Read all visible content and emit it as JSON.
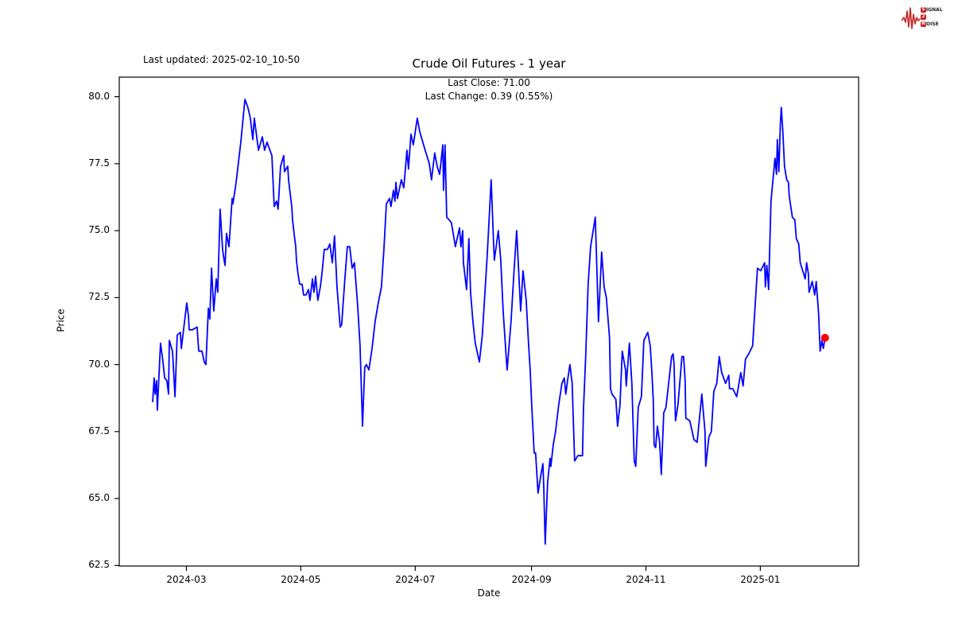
{
  "branding": {
    "logo_color": "#c62828",
    "rows": [
      {
        "badge": "S",
        "word": "IGNAL"
      },
      {
        "badge": "2",
        "word": ""
      },
      {
        "badge": "N",
        "word": "OISE"
      }
    ]
  },
  "header": {
    "last_updated": "Last updated: 2025-02-10_10-50",
    "title": "Crude Oil Futures - 1 year",
    "annotation_line1": "Last Close: 71.00",
    "annotation_line2": "Last Change: 0.39 (0.55%)"
  },
  "chart_data": {
    "type": "line",
    "title": "Crude Oil Futures - 1 year",
    "xlabel": "Date",
    "ylabel": "Price",
    "line_color": "#0000ff",
    "marker_color": "#ff0000",
    "background": "#ffffff",
    "grid": false,
    "legend": "none",
    "last_close": 71.0,
    "last_change": 0.39,
    "last_change_pct": 0.55,
    "x_start_date": "2024-02-12",
    "x_end_date": "2025-02-07",
    "x_unit": "days since 2024-02-12",
    "xlim_days": [
      -17.8,
      376.4
    ],
    "ylim": [
      62.48,
      80.73
    ],
    "y_ticks": [
      {
        "v": 62.5,
        "label": "62.5"
      },
      {
        "v": 65.0,
        "label": "65.0"
      },
      {
        "v": 67.5,
        "label": "67.5"
      },
      {
        "v": 70.0,
        "label": "70.0"
      },
      {
        "v": 72.5,
        "label": "72.5"
      },
      {
        "v": 75.0,
        "label": "75.0"
      },
      {
        "v": 77.5,
        "label": "77.5"
      },
      {
        "v": 80.0,
        "label": "80.0"
      }
    ],
    "x_ticks": [
      {
        "t": 18,
        "label": "2024-03"
      },
      {
        "t": 79,
        "label": "2024-05"
      },
      {
        "t": 140,
        "label": "2024-07"
      },
      {
        "t": 202,
        "label": "2024-09"
      },
      {
        "t": 263,
        "label": "2024-11"
      },
      {
        "t": 324,
        "label": "2025-01"
      }
    ],
    "points": [
      [
        0,
        68.6
      ],
      [
        0.8,
        69.5
      ],
      [
        1.3,
        68.9
      ],
      [
        2.1,
        69.4
      ],
      [
        2.5,
        68.3
      ],
      [
        4.2,
        70.8
      ],
      [
        5.5,
        70.1
      ],
      [
        6.4,
        69.5
      ],
      [
        7.6,
        69.4
      ],
      [
        8.5,
        68.9
      ],
      [
        8.9,
        70.9
      ],
      [
        10.6,
        70.5
      ],
      [
        11.9,
        68.8
      ],
      [
        13.1,
        71.1
      ],
      [
        14.8,
        71.2
      ],
      [
        15.3,
        70.6
      ],
      [
        18.2,
        72.3
      ],
      [
        19.1,
        71.8
      ],
      [
        19.5,
        71.3
      ],
      [
        21.2,
        71.3
      ],
      [
        23.7,
        71.4
      ],
      [
        24.6,
        70.5
      ],
      [
        26.3,
        70.5
      ],
      [
        27.5,
        70.1
      ],
      [
        28.4,
        70.0
      ],
      [
        29.7,
        72.1
      ],
      [
        30.5,
        71.7
      ],
      [
        31.4,
        73.6
      ],
      [
        32.6,
        72.0
      ],
      [
        33.9,
        73.2
      ],
      [
        34.7,
        72.7
      ],
      [
        36.0,
        75.8
      ],
      [
        37.3,
        74.3
      ],
      [
        38.1,
        73.9
      ],
      [
        38.6,
        73.7
      ],
      [
        39.4,
        74.9
      ],
      [
        40.7,
        74.4
      ],
      [
        42.4,
        76.2
      ],
      [
        42.8,
        76.0
      ],
      [
        44.5,
        76.8
      ],
      [
        47.0,
        78.3
      ],
      [
        49.2,
        79.9
      ],
      [
        50.8,
        79.6
      ],
      [
        52.1,
        79.2
      ],
      [
        53.4,
        78.4
      ],
      [
        54.2,
        79.2
      ],
      [
        56.4,
        78.0
      ],
      [
        58.5,
        78.5
      ],
      [
        59.7,
        78.0
      ],
      [
        61.0,
        78.3
      ],
      [
        63.6,
        77.8
      ],
      [
        64.8,
        75.9
      ],
      [
        66.1,
        76.1
      ],
      [
        66.9,
        75.8
      ],
      [
        68.2,
        77.4
      ],
      [
        69.9,
        77.8
      ],
      [
        70.3,
        77.2
      ],
      [
        72.0,
        77.4
      ],
      [
        72.5,
        76.9
      ],
      [
        73.3,
        76.4
      ],
      [
        74.2,
        75.9
      ],
      [
        74.6,
        75.4
      ],
      [
        75.4,
        74.9
      ],
      [
        76.3,
        74.4
      ],
      [
        76.7,
        73.9
      ],
      [
        77.5,
        73.4
      ],
      [
        78.4,
        73.0
      ],
      [
        79.7,
        73.0
      ],
      [
        80.5,
        72.6
      ],
      [
        81.8,
        72.6
      ],
      [
        83.1,
        72.8
      ],
      [
        83.9,
        72.4
      ],
      [
        85.2,
        73.2
      ],
      [
        86.0,
        72.7
      ],
      [
        86.9,
        73.3
      ],
      [
        88.1,
        72.4
      ],
      [
        89.4,
        72.9
      ],
      [
        90.3,
        73.4
      ],
      [
        91.5,
        74.3
      ],
      [
        93.2,
        74.3
      ],
      [
        94.5,
        74.5
      ],
      [
        95.8,
        73.8
      ],
      [
        97.0,
        74.8
      ],
      [
        98.3,
        72.9
      ],
      [
        100.0,
        71.4
      ],
      [
        100.8,
        71.5
      ],
      [
        102.5,
        73.2
      ],
      [
        103.8,
        74.4
      ],
      [
        105.1,
        74.4
      ],
      [
        106.4,
        73.6
      ],
      [
        107.6,
        73.8
      ],
      [
        109.3,
        72.2
      ],
      [
        110.6,
        70.7
      ],
      [
        111.9,
        67.7
      ],
      [
        113.1,
        69.9
      ],
      [
        114.0,
        70.0
      ],
      [
        115.3,
        69.8
      ],
      [
        117.0,
        70.6
      ],
      [
        118.6,
        71.6
      ],
      [
        120.3,
        72.3
      ],
      [
        122.0,
        72.9
      ],
      [
        123.3,
        74.3
      ],
      [
        124.6,
        76.0
      ],
      [
        126.3,
        76.2
      ],
      [
        127.1,
        75.9
      ],
      [
        128.4,
        76.5
      ],
      [
        129.2,
        76.1
      ],
      [
        129.7,
        76.8
      ],
      [
        130.5,
        76.2
      ],
      [
        132.6,
        76.9
      ],
      [
        133.9,
        76.6
      ],
      [
        135.6,
        78.0
      ],
      [
        136.4,
        77.3
      ],
      [
        137.7,
        78.6
      ],
      [
        139.0,
        78.2
      ],
      [
        141.1,
        79.2
      ],
      [
        142.4,
        78.7
      ],
      [
        145.3,
        78.0
      ],
      [
        147.5,
        77.5
      ],
      [
        148.7,
        76.9
      ],
      [
        150.4,
        77.9
      ],
      [
        151.7,
        77.4
      ],
      [
        153.0,
        77.1
      ],
      [
        154.7,
        78.2
      ],
      [
        155.1,
        76.5
      ],
      [
        155.9,
        78.2
      ],
      [
        156.8,
        75.5
      ],
      [
        158.1,
        75.4
      ],
      [
        159.3,
        75.3
      ],
      [
        161.4,
        74.4
      ],
      [
        163.6,
        75.1
      ],
      [
        164.4,
        74.4
      ],
      [
        165.3,
        75.0
      ],
      [
        165.7,
        73.8
      ],
      [
        167.4,
        72.8
      ],
      [
        168.6,
        74.7
      ],
      [
        169.5,
        72.7
      ],
      [
        170.8,
        71.6
      ],
      [
        172.0,
        70.8
      ],
      [
        174.2,
        70.1
      ],
      [
        175.8,
        71.1
      ],
      [
        177.1,
        72.6
      ],
      [
        178.4,
        74.1
      ],
      [
        179.7,
        75.8
      ],
      [
        180.5,
        76.9
      ],
      [
        181.8,
        74.5
      ],
      [
        182.2,
        73.9
      ],
      [
        184.3,
        75.0
      ],
      [
        185.6,
        73.9
      ],
      [
        186.9,
        72.0
      ],
      [
        188.6,
        70.2
      ],
      [
        189.0,
        69.8
      ],
      [
        191.1,
        71.6
      ],
      [
        192.8,
        73.6
      ],
      [
        194.1,
        75.0
      ],
      [
        196.2,
        72.0
      ],
      [
        197.5,
        73.5
      ],
      [
        199.2,
        72.4
      ],
      [
        200.4,
        70.8
      ],
      [
        201.3,
        69.8
      ],
      [
        202.1,
        68.5
      ],
      [
        203.0,
        67.3
      ],
      [
        203.4,
        66.7
      ],
      [
        204.2,
        66.7
      ],
      [
        205.5,
        65.2
      ],
      [
        206.8,
        65.8
      ],
      [
        208.1,
        66.3
      ],
      [
        208.5,
        65.5
      ],
      [
        209.3,
        63.3
      ],
      [
        210.6,
        65.6
      ],
      [
        211.9,
        66.5
      ],
      [
        212.3,
        66.2
      ],
      [
        213.6,
        67.0
      ],
      [
        214.8,
        67.5
      ],
      [
        216.5,
        68.5
      ],
      [
        218.2,
        69.3
      ],
      [
        219.5,
        69.5
      ],
      [
        220.3,
        68.9
      ],
      [
        221.2,
        69.4
      ],
      [
        222.5,
        70.0
      ],
      [
        223.7,
        69.3
      ],
      [
        225.0,
        66.4
      ],
      [
        226.7,
        66.6
      ],
      [
        229.2,
        66.6
      ],
      [
        229.7,
        68.3
      ],
      [
        230.9,
        70.3
      ],
      [
        232.2,
        73.0
      ],
      [
        233.5,
        74.4
      ],
      [
        236.0,
        75.5
      ],
      [
        237.7,
        71.6
      ],
      [
        239.4,
        74.2
      ],
      [
        240.7,
        72.9
      ],
      [
        241.9,
        72.5
      ],
      [
        243.6,
        71.0
      ],
      [
        244.1,
        69.1
      ],
      [
        244.9,
        68.9
      ],
      [
        247.0,
        68.7
      ],
      [
        247.9,
        67.7
      ],
      [
        249.2,
        68.5
      ],
      [
        250.4,
        70.5
      ],
      [
        252.1,
        69.8
      ],
      [
        252.5,
        69.2
      ],
      [
        254.2,
        70.8
      ],
      [
        255.5,
        69.3
      ],
      [
        256.8,
        66.4
      ],
      [
        257.6,
        66.2
      ],
      [
        258.9,
        68.4
      ],
      [
        260.6,
        68.8
      ],
      [
        261.9,
        70.9
      ],
      [
        264.0,
        71.2
      ],
      [
        265.3,
        70.7
      ],
      [
        266.1,
        69.8
      ],
      [
        266.9,
        68.7
      ],
      [
        267.4,
        67.0
      ],
      [
        268.2,
        66.9
      ],
      [
        269.1,
        67.7
      ],
      [
        270.3,
        67.1
      ],
      [
        271.2,
        65.9
      ],
      [
        272.5,
        68.2
      ],
      [
        273.7,
        68.4
      ],
      [
        276.7,
        70.3
      ],
      [
        277.5,
        70.4
      ],
      [
        278.0,
        70.0
      ],
      [
        278.8,
        67.9
      ],
      [
        280.1,
        68.5
      ],
      [
        282.2,
        70.3
      ],
      [
        283.1,
        70.3
      ],
      [
        283.9,
        69.4
      ],
      [
        284.3,
        68.0
      ],
      [
        286.4,
        67.9
      ],
      [
        288.6,
        67.2
      ],
      [
        290.3,
        67.1
      ],
      [
        292.8,
        68.9
      ],
      [
        294.5,
        67.5
      ],
      [
        294.9,
        66.2
      ],
      [
        296.6,
        67.3
      ],
      [
        297.9,
        67.5
      ],
      [
        299.2,
        69.0
      ],
      [
        300.8,
        69.3
      ],
      [
        302.1,
        70.3
      ],
      [
        303.4,
        69.7
      ],
      [
        305.5,
        69.3
      ],
      [
        307.2,
        69.6
      ],
      [
        307.6,
        69.1
      ],
      [
        309.3,
        69.1
      ],
      [
        311.4,
        68.8
      ],
      [
        313.6,
        69.7
      ],
      [
        314.8,
        69.2
      ],
      [
        316.1,
        70.2
      ],
      [
        317.8,
        70.4
      ],
      [
        319.9,
        70.7
      ],
      [
        322.5,
        73.6
      ],
      [
        324.2,
        73.5
      ],
      [
        326.3,
        73.8
      ],
      [
        326.7,
        72.9
      ],
      [
        327.5,
        73.7
      ],
      [
        328.4,
        72.8
      ],
      [
        329.7,
        76.1
      ],
      [
        331.8,
        77.7
      ],
      [
        332.6,
        77.1
      ],
      [
        333.1,
        78.4
      ],
      [
        333.9,
        77.2
      ],
      [
        334.7,
        79.0
      ],
      [
        335.2,
        79.6
      ],
      [
        336.0,
        78.7
      ],
      [
        336.9,
        77.4
      ],
      [
        338.1,
        76.9
      ],
      [
        339.0,
        76.8
      ],
      [
        339.4,
        76.3
      ],
      [
        341.1,
        75.5
      ],
      [
        342.4,
        75.4
      ],
      [
        343.2,
        74.7
      ],
      [
        344.5,
        74.5
      ],
      [
        345.3,
        73.8
      ],
      [
        346.6,
        73.5
      ],
      [
        347.9,
        73.2
      ],
      [
        348.7,
        73.8
      ],
      [
        349.6,
        73.4
      ],
      [
        350.0,
        72.7
      ],
      [
        351.7,
        73.1
      ],
      [
        353.0,
        72.6
      ],
      [
        353.8,
        73.1
      ],
      [
        355.1,
        71.9
      ],
      [
        355.9,
        70.5
      ],
      [
        356.8,
        70.9
      ],
      [
        357.6,
        70.6
      ],
      [
        358.5,
        71.0
      ]
    ]
  }
}
